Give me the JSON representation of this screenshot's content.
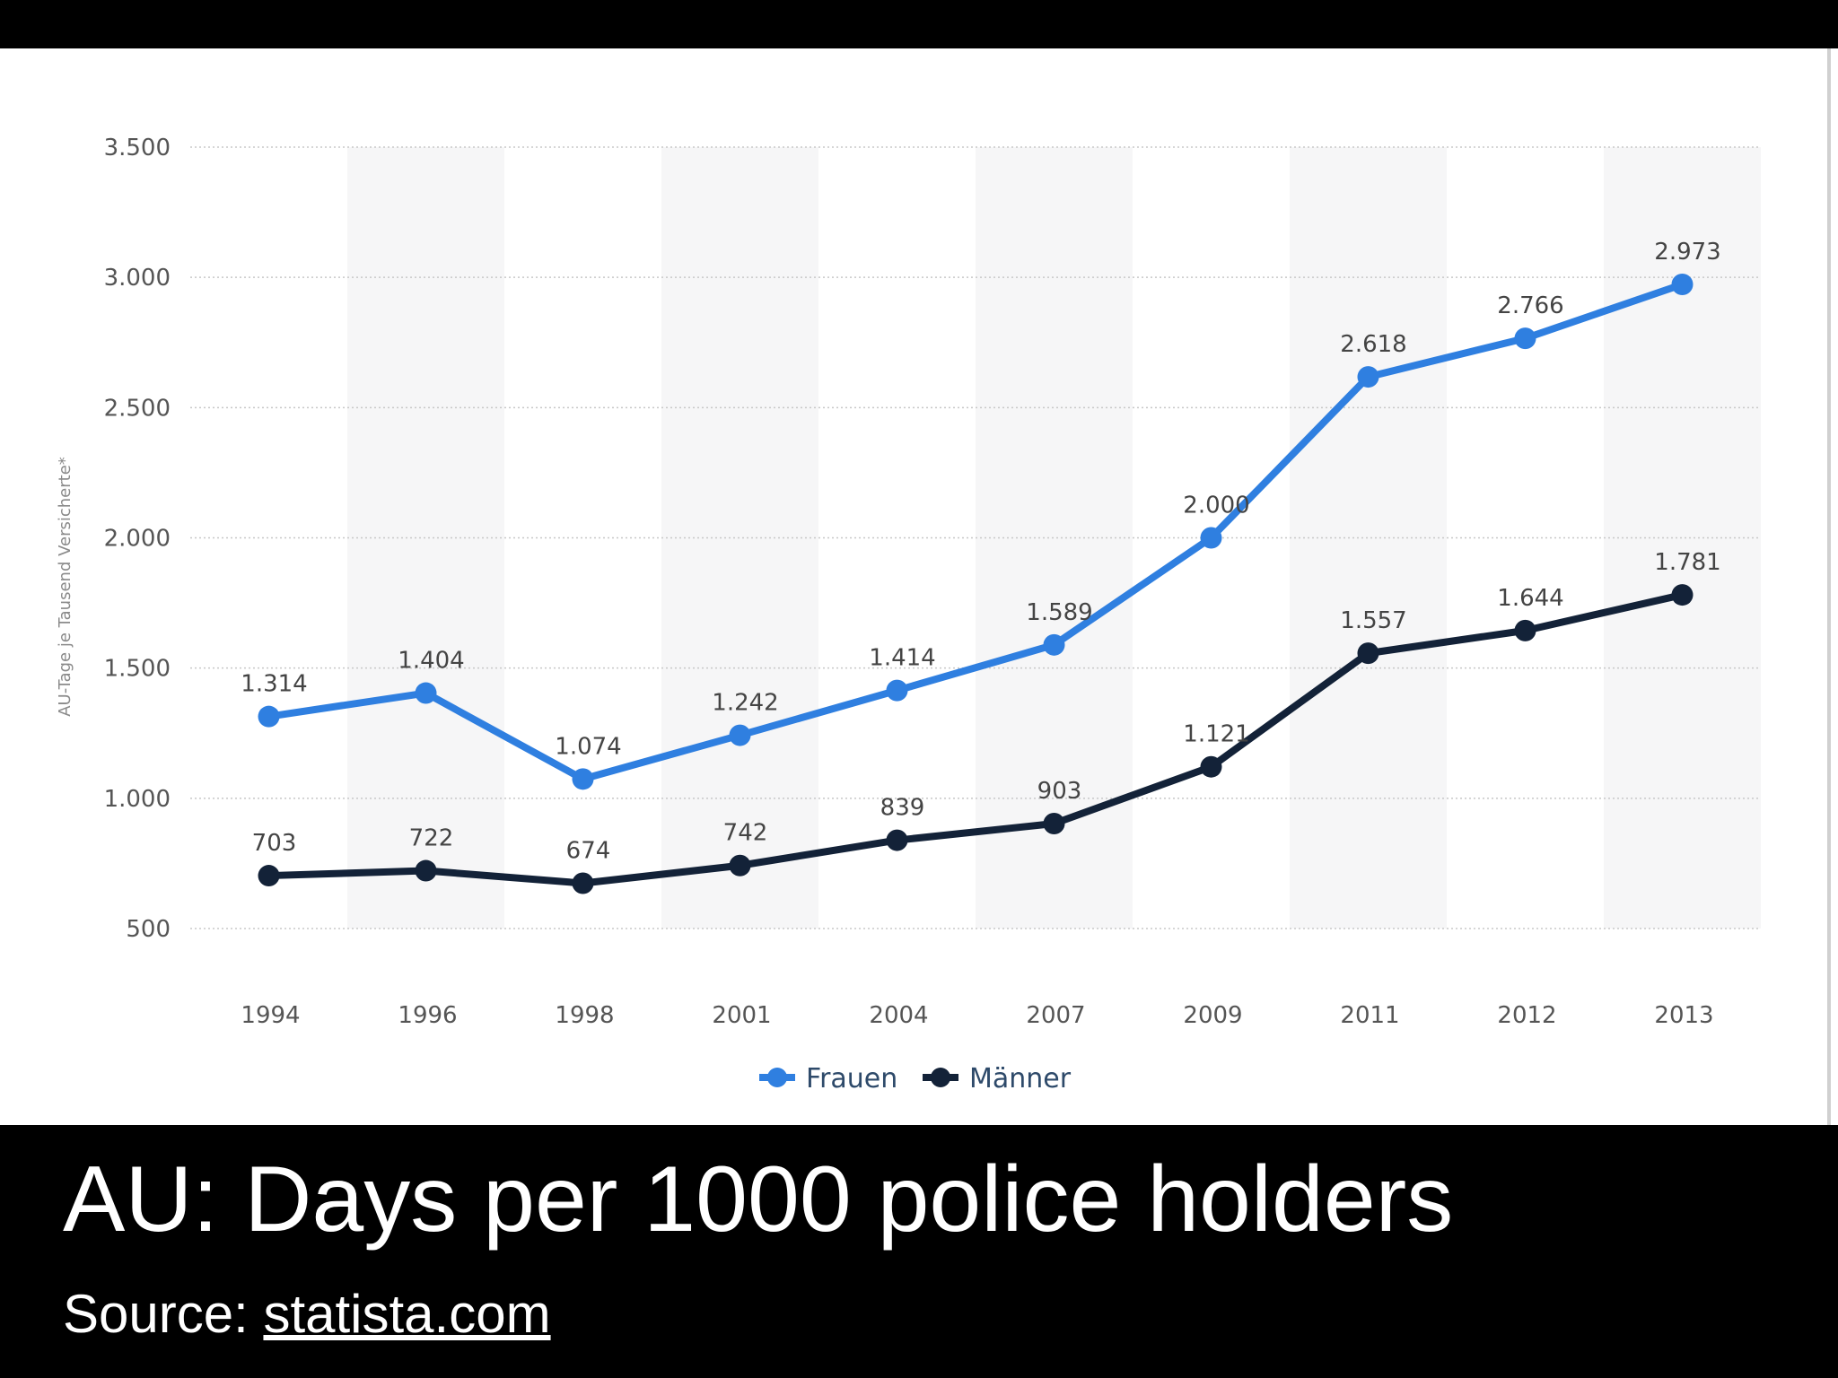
{
  "chart_data": {
    "type": "line",
    "categories": [
      "1994",
      "1996",
      "1998",
      "2001",
      "2004",
      "2007",
      "2009",
      "2011",
      "2012",
      "2013"
    ],
    "series": [
      {
        "name": "Frauen",
        "color": "#2f7fe0",
        "values": [
          1314,
          1404,
          1074,
          1242,
          1414,
          1589,
          2000,
          2618,
          2766,
          2973
        ],
        "labels": [
          "1.314",
          "1.404",
          "1.074",
          "1.242",
          "1.414",
          "1.589",
          "2.000",
          "2.618",
          "2.766",
          "2.973"
        ]
      },
      {
        "name": "Männer",
        "color": "#132238",
        "values": [
          703,
          722,
          674,
          742,
          839,
          903,
          1121,
          1557,
          1644,
          1781
        ],
        "labels": [
          "703",
          "722",
          "674",
          "742",
          "839",
          "903",
          "1.121",
          "1.557",
          "1.644",
          "1.781"
        ]
      }
    ],
    "ylabel": "AU-Tage je Tausend Versicherte*",
    "ylim": [
      500,
      3500
    ],
    "yticks": [
      500,
      1000,
      1500,
      2000,
      2500,
      3000,
      3500
    ],
    "ytick_labels": [
      "500",
      "1.000",
      "1.500",
      "2.000",
      "2.500",
      "3.000",
      "3.500"
    ],
    "grid": true,
    "legend": "bottom-center"
  },
  "caption": {
    "title": "AU: Days per 1000 police holders",
    "source_prefix": "Source: ",
    "source_link": "statista.com"
  }
}
